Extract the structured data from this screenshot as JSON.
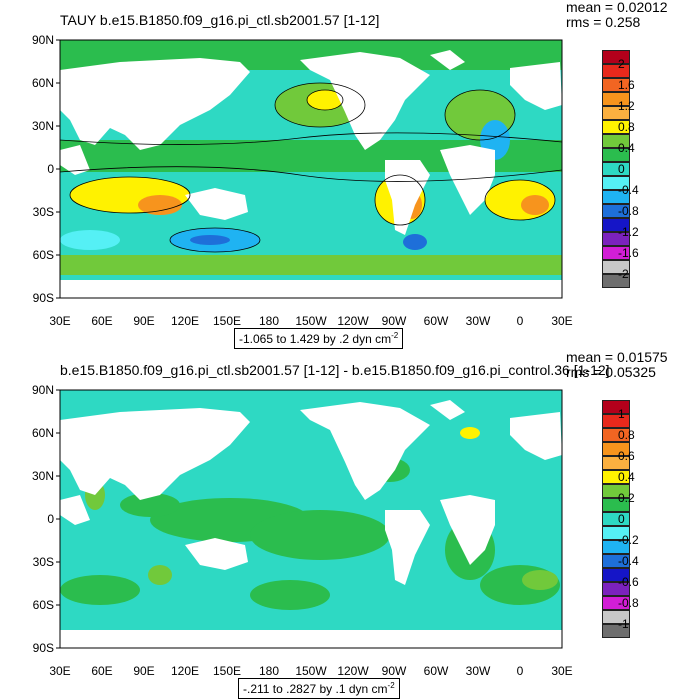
{
  "panels": [
    {
      "title": "TAUY b.e15.B1850.f09_g16.pi_ctl.sb2001.57 [1-12]",
      "mean": "mean = 0.02012",
      "rms": "rms = 0.258",
      "contour_info_prefix": "-1.065 to 1.429 by .2 dyn cm",
      "contour_info_exp": "-2",
      "colorbar": {
        "labels": [
          "2",
          "1.6",
          "1.2",
          "0.8",
          "0.4",
          "0",
          "-0.4",
          "-0.8",
          "-1.2",
          "-1.6",
          "-2"
        ],
        "colors": [
          "#b3001b",
          "#e8291c",
          "#f26522",
          "#f7941d",
          "#fbb040",
          "#fff200",
          "#71c93b",
          "#2bbd4e",
          "#2ed9c3",
          "#55f0f5",
          "#1fb3f2",
          "#1e6fd9",
          "#1515c7",
          "#7b22bd",
          "#d21ed6",
          "#c8c8c8",
          "#6e6e6e"
        ]
      }
    },
    {
      "title": "b.e15.B1850.f09_g16.pi_ctl.sb2001.57 [1-12] - b.e15.B1850.f09_g16.pi_control.36 [1-12]",
      "mean": "mean = 0.01575",
      "rms": "rms = 0.05325",
      "contour_info_prefix": "-.211 to .2827 by .1 dyn cm",
      "contour_info_exp": "-2",
      "colorbar": {
        "labels": [
          "1",
          "0.8",
          "0.6",
          "0.4",
          "0.2",
          "0",
          "-0.2",
          "-0.4",
          "-0.6",
          "-0.8",
          "-1"
        ],
        "colors": [
          "#b3001b",
          "#e8291c",
          "#f26522",
          "#f7941d",
          "#fbb040",
          "#fff200",
          "#71c93b",
          "#2bbd4e",
          "#2ed9c3",
          "#55f0f5",
          "#1fb3f2",
          "#1e6fd9",
          "#1515c7",
          "#7b22bd",
          "#d21ed6",
          "#c8c8c8",
          "#6e6e6e"
        ]
      }
    }
  ],
  "lat_labels": [
    "90N",
    "60N",
    "30N",
    "0",
    "30S",
    "60S",
    "90S"
  ],
  "lon_labels": [
    "30E",
    "60E",
    "90E",
    "120E",
    "150E",
    "180",
    "150W",
    "120W",
    "90W",
    "60W",
    "30W",
    "0",
    "30E"
  ]
}
